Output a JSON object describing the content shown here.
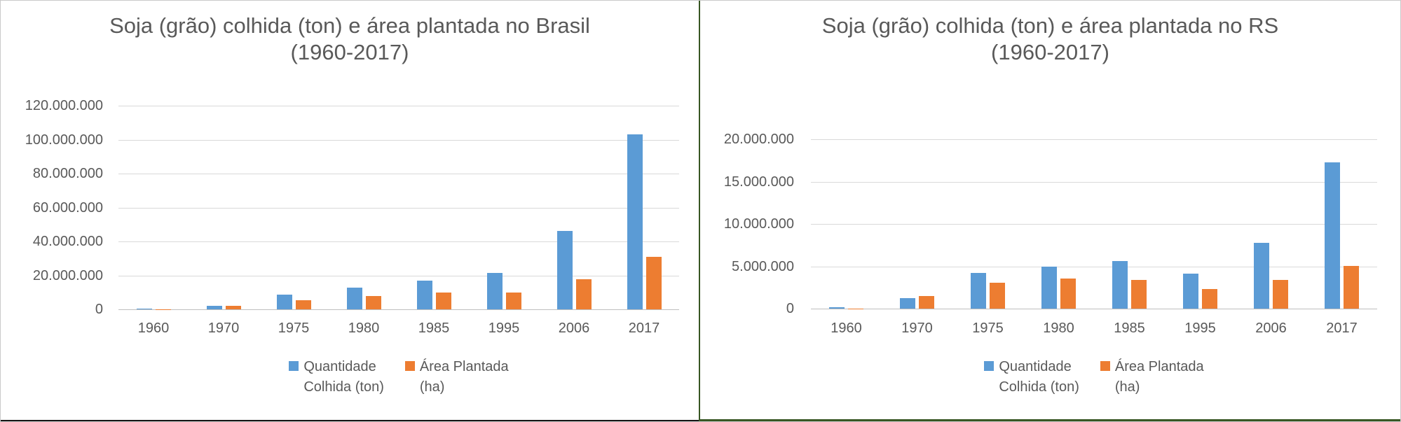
{
  "colors": {
    "series_colhida": "#5B9BD5",
    "series_plantada": "#ED7D31",
    "text": "#595959",
    "gridline": "#D9D9D9",
    "left_panel_bottom_border": "#141414",
    "right_panel_border": "#375623"
  },
  "charts": [
    {
      "title_line1": "Soja (grão) colhida (ton) e área plantada no Brasil",
      "title_line2": "(1960-2017)",
      "chart_data": {
        "type": "bar",
        "title": "Soja (grão) colhida (ton) e área plantada no Brasil (1960-2017)",
        "categories": [
          "1960",
          "1970",
          "1975",
          "1980",
          "1985",
          "1995",
          "2006",
          "2017"
        ],
        "series": [
          {
            "name": "Quantidade Colhida (ton)",
            "color": "#5B9BD5",
            "values": [
              250000,
              2000000,
              8700000,
              12600000,
              16900000,
              21500000,
              46000000,
              103000000
            ]
          },
          {
            "name": "Área Plantada (ha)",
            "color": "#ED7D31",
            "values": [
              150000,
              2200000,
              5500000,
              7800000,
              9900000,
              9900000,
              17800000,
              31000000
            ]
          }
        ],
        "xlabel": "",
        "ylabel": "",
        "ylim": [
          0,
          120000000
        ],
        "ytick_step": 20000000,
        "ytick_labels": [
          "120.000.000",
          "100.000.000",
          "80.000.000",
          "60.000.000",
          "40.000.000",
          "20.000.000",
          "0"
        ],
        "grid": true,
        "legend_position": "bottom",
        "legend_entries": [
          {
            "lines": [
              "Quantidade",
              "Colhida (ton)"
            ],
            "color": "#5B9BD5"
          },
          {
            "lines": [
              "Área Plantada",
              "(ha)"
            ],
            "color": "#ED7D31"
          }
        ]
      }
    },
    {
      "title_line1": "Soja (grão) colhida (ton) e área plantada no RS",
      "title_line2": "(1960-2017)",
      "chart_data": {
        "type": "bar",
        "title": "Soja (grão) colhida (ton) e área plantada no RS (1960-2017)",
        "categories": [
          "1960",
          "1970",
          "1975",
          "1980",
          "1985",
          "1995",
          "2006",
          "2017"
        ],
        "series": [
          {
            "name": "Quantidade Colhida (ton)",
            "color": "#5B9BD5",
            "values": [
              170000,
              1200000,
              4250000,
              5000000,
              5600000,
              4150000,
              7800000,
              17300000
            ]
          },
          {
            "name": "Área Plantada (ha)",
            "color": "#ED7D31",
            "values": [
              30000,
              1500000,
              3100000,
              3550000,
              3400000,
              2300000,
              3400000,
              5050000
            ]
          }
        ],
        "xlabel": "",
        "ylabel": "",
        "ylim": [
          0,
          20000000
        ],
        "ytick_step": 5000000,
        "ytick_labels": [
          "20.000.000",
          "15.000.000",
          "10.000.000",
          "5.000.000",
          "0"
        ],
        "grid": true,
        "legend_position": "bottom",
        "legend_entries": [
          {
            "lines": [
              "Quantidade",
              "Colhida (ton)"
            ],
            "color": "#5B9BD5"
          },
          {
            "lines": [
              "Área Plantada",
              "(ha)"
            ],
            "color": "#ED7D31"
          }
        ]
      }
    }
  ]
}
